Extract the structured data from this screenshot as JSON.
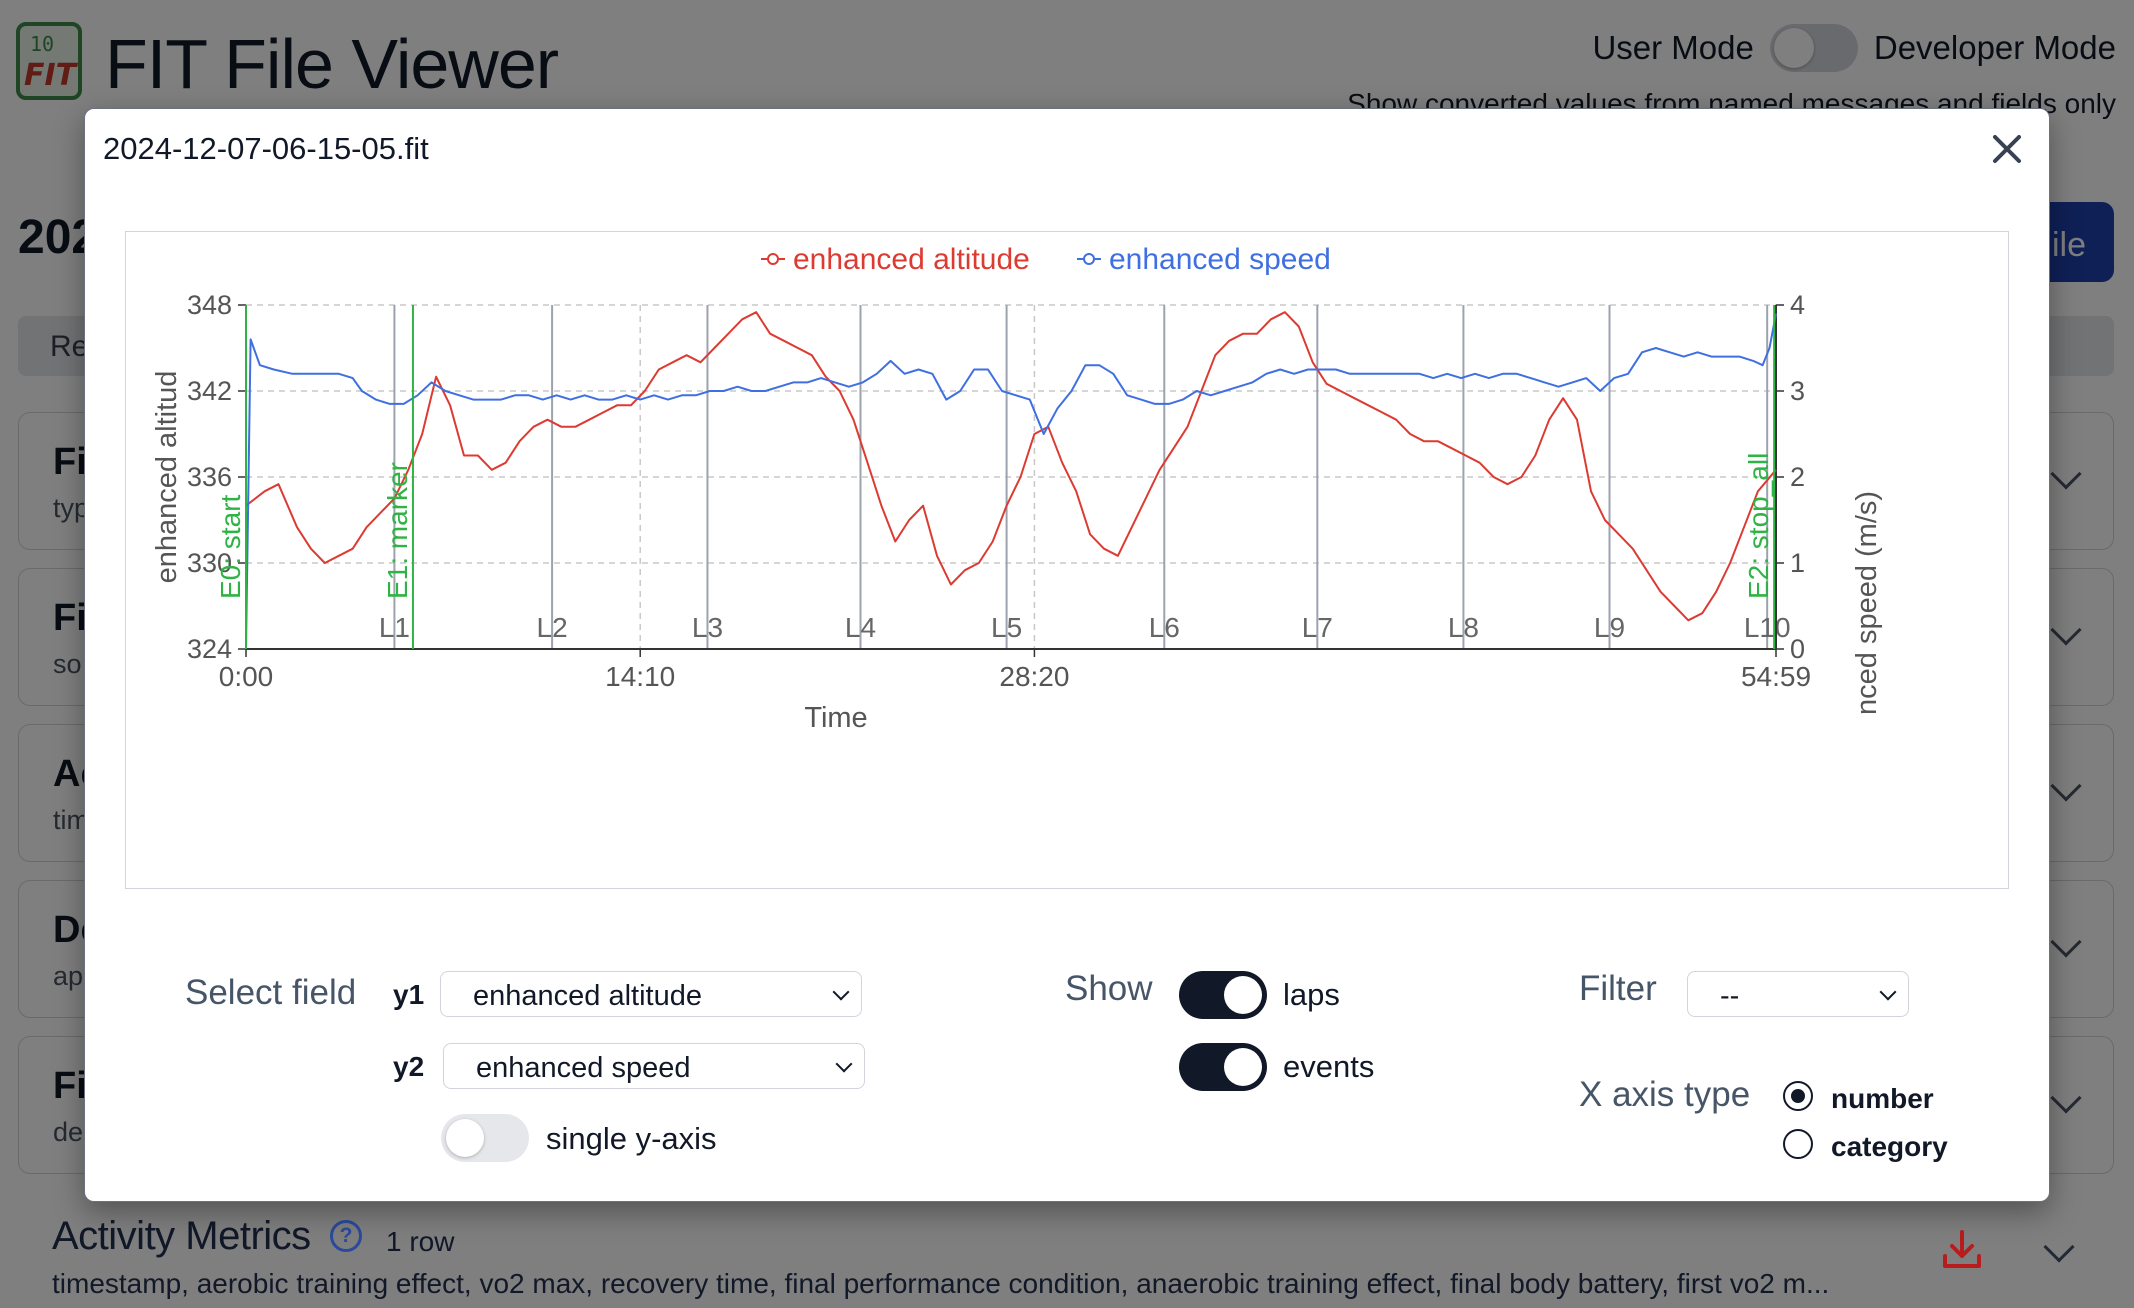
{
  "app": {
    "title": "FIT File Viewer",
    "logo_number": "10",
    "logo_text": "FIT",
    "mode_user": "User Mode",
    "mode_developer": "Developer Mode",
    "mode_hint": "Show converted values from named messages and fields only",
    "file_heading": "202",
    "open_button": "ile",
    "tab_partial": "Re"
  },
  "sections": [
    {
      "title": "Fi",
      "sub": "typ"
    },
    {
      "title": "Fi",
      "sub": "so"
    },
    {
      "title": "Ac",
      "sub": "tim"
    },
    {
      "title": "De",
      "sub": "ap"
    },
    {
      "title": "Fi",
      "sub": "de"
    }
  ],
  "metrics": {
    "title": "Activity Metrics",
    "help": "?",
    "count": "1 row",
    "fields": "timestamp, aerobic training effect, vo2 max, recovery time, final performance condition, anaerobic training effect, final body battery, first vo2 m..."
  },
  "modal": {
    "title": "2024-12-07-06-15-05.fit"
  },
  "controls": {
    "select_field_label": "Select field",
    "y1_label": "y1",
    "y1_value": "enhanced altitude",
    "y2_label": "y2",
    "y2_value": "enhanced speed",
    "single_axis_label": "single y-axis",
    "show_label": "Show",
    "laps_label": "laps",
    "events_label": "events",
    "filter_label": "Filter",
    "filter_value": "--",
    "x_axis_type_label": "X axis type",
    "radio_number": "number",
    "radio_category": "category"
  },
  "colors": {
    "altitude": "#dc3b32",
    "speed": "#3f6fe0",
    "events": "#2fb344",
    "laps": "#9ca3af"
  },
  "chart_data": {
    "type": "line",
    "legend": [
      "enhanced altitude",
      "enhanced speed"
    ],
    "legend_position": "top-center",
    "xlabel": "Time",
    "ylabel_left": "enhanced altitud",
    "ylabel_right": "nced speed (m/s)",
    "x_range_seconds": [
      0,
      3299
    ],
    "x_ticks": [
      {
        "value": 0,
        "label": "0:00"
      },
      {
        "value": 850,
        "label": "14:10"
      },
      {
        "value": 1700,
        "label": "28:20"
      },
      {
        "value": 3299,
        "label": "54:59"
      }
    ],
    "y_left_range": [
      324,
      348
    ],
    "y_left_ticks": [
      324,
      330,
      336,
      342,
      348
    ],
    "y_right_range": [
      0,
      4
    ],
    "y_right_ticks": [
      0,
      1,
      2,
      3,
      4
    ],
    "grid": "dashed",
    "laps": [
      {
        "label": "L1",
        "x": 320
      },
      {
        "label": "L2",
        "x": 660
      },
      {
        "label": "L3",
        "x": 995
      },
      {
        "label": "L4",
        "x": 1325
      },
      {
        "label": "L5",
        "x": 1640
      },
      {
        "label": "L6",
        "x": 1980
      },
      {
        "label": "L7",
        "x": 2310
      },
      {
        "label": "L8",
        "x": 2625
      },
      {
        "label": "L9",
        "x": 2940
      },
      {
        "label": "L10",
        "x": 3280
      }
    ],
    "events": [
      {
        "label": "E0: start",
        "x": 0
      },
      {
        "label": "E1: marker",
        "x": 360
      },
      {
        "label": "E2: stop_all",
        "x": 3295
      }
    ],
    "series": [
      {
        "name": "enhanced altitude",
        "axis": "left",
        "x": [
          0,
          40,
          70,
          110,
          140,
          170,
          200,
          230,
          260,
          290,
          320,
          350,
          380,
          410,
          440,
          470,
          500,
          530,
          560,
          590,
          620,
          650,
          680,
          710,
          740,
          770,
          800,
          830,
          860,
          890,
          920,
          950,
          980,
          1010,
          1040,
          1070,
          1100,
          1130,
          1160,
          1190,
          1220,
          1250,
          1280,
          1310,
          1340,
          1370,
          1400,
          1430,
          1460,
          1490,
          1520,
          1550,
          1580,
          1610,
          1640,
          1670,
          1700,
          1730,
          1760,
          1790,
          1820,
          1850,
          1880,
          1910,
          1940,
          1970,
          2000,
          2030,
          2060,
          2090,
          2120,
          2150,
          2180,
          2210,
          2240,
          2270,
          2300,
          2330,
          2360,
          2390,
          2420,
          2450,
          2480,
          2510,
          2540,
          2570,
          2600,
          2630,
          2660,
          2690,
          2720,
          2750,
          2780,
          2810,
          2840,
          2870,
          2900,
          2930,
          2960,
          2990,
          3020,
          3050,
          3080,
          3110,
          3140,
          3170,
          3200,
          3230,
          3260,
          3299
        ],
        "y": [
          334,
          335,
          335.5,
          332.5,
          331,
          330,
          330.5,
          331,
          332.5,
          333.5,
          334.5,
          336.5,
          339,
          343,
          341,
          337.5,
          337.5,
          336.5,
          337,
          338.5,
          339.5,
          340,
          339.5,
          339.5,
          340,
          340.5,
          341,
          341,
          342,
          343.5,
          344,
          344.5,
          344,
          345,
          346,
          347,
          347.5,
          346,
          345.5,
          345,
          344.5,
          343,
          342,
          340,
          337,
          334,
          331.5,
          333,
          334,
          330.5,
          328.5,
          329.5,
          330,
          331.5,
          334,
          336,
          339,
          339.5,
          337,
          335,
          332,
          331,
          330.5,
          332.5,
          334.5,
          336.5,
          338,
          339.5,
          342,
          344.5,
          345.5,
          346,
          346,
          347,
          347.5,
          346.5,
          344,
          342.5,
          342,
          341.5,
          341,
          340.5,
          340,
          339,
          338.5,
          338.5,
          338,
          337.5,
          337,
          336,
          335.5,
          336,
          337.5,
          340,
          341.5,
          340,
          335,
          333,
          332,
          331,
          329.5,
          328,
          327,
          326,
          326.5,
          328,
          330,
          332.5,
          335,
          336.5
        ]
      },
      {
        "name": "enhanced speed",
        "axis": "right",
        "x": [
          0,
          10,
          30,
          60,
          100,
          150,
          200,
          230,
          250,
          280,
          310,
          340,
          370,
          400,
          430,
          460,
          490,
          520,
          550,
          580,
          610,
          640,
          670,
          700,
          730,
          760,
          790,
          820,
          850,
          880,
          910,
          940,
          970,
          1000,
          1030,
          1060,
          1090,
          1120,
          1150,
          1180,
          1210,
          1240,
          1270,
          1300,
          1330,
          1360,
          1390,
          1420,
          1450,
          1480,
          1510,
          1540,
          1570,
          1600,
          1630,
          1660,
          1690,
          1720,
          1750,
          1780,
          1810,
          1840,
          1870,
          1900,
          1930,
          1960,
          1990,
          2020,
          2050,
          2080,
          2110,
          2140,
          2170,
          2200,
          2230,
          2260,
          2290,
          2320,
          2350,
          2380,
          2410,
          2440,
          2470,
          2500,
          2530,
          2560,
          2590,
          2620,
          2650,
          2680,
          2710,
          2740,
          2770,
          2800,
          2830,
          2860,
          2890,
          2920,
          2950,
          2980,
          3010,
          3040,
          3070,
          3100,
          3130,
          3160,
          3190,
          3220,
          3250,
          3270,
          3285,
          3299
        ],
        "y": [
          0,
          3.6,
          3.3,
          3.25,
          3.2,
          3.2,
          3.2,
          3.15,
          3.0,
          2.9,
          2.85,
          2.85,
          2.95,
          3.1,
          3.0,
          2.95,
          2.9,
          2.9,
          2.9,
          2.95,
          2.95,
          2.9,
          2.95,
          2.9,
          2.95,
          2.9,
          2.9,
          2.95,
          2.9,
          2.95,
          2.9,
          2.95,
          2.95,
          3.0,
          3.0,
          3.05,
          3.0,
          3.0,
          3.05,
          3.1,
          3.1,
          3.15,
          3.1,
          3.05,
          3.1,
          3.2,
          3.35,
          3.2,
          3.25,
          3.2,
          2.9,
          3.0,
          3.25,
          3.25,
          3.0,
          2.95,
          2.9,
          2.5,
          2.8,
          3.0,
          3.3,
          3.3,
          3.2,
          2.95,
          2.9,
          2.85,
          2.85,
          2.9,
          3.0,
          2.95,
          3.0,
          3.05,
          3.1,
          3.2,
          3.25,
          3.2,
          3.25,
          3.25,
          3.25,
          3.2,
          3.2,
          3.2,
          3.2,
          3.2,
          3.2,
          3.15,
          3.2,
          3.15,
          3.2,
          3.15,
          3.2,
          3.2,
          3.15,
          3.1,
          3.05,
          3.1,
          3.15,
          3.0,
          3.15,
          3.2,
          3.45,
          3.5,
          3.45,
          3.4,
          3.45,
          3.4,
          3.4,
          3.4,
          3.35,
          3.3,
          3.5,
          3.9
        ]
      }
    ]
  }
}
